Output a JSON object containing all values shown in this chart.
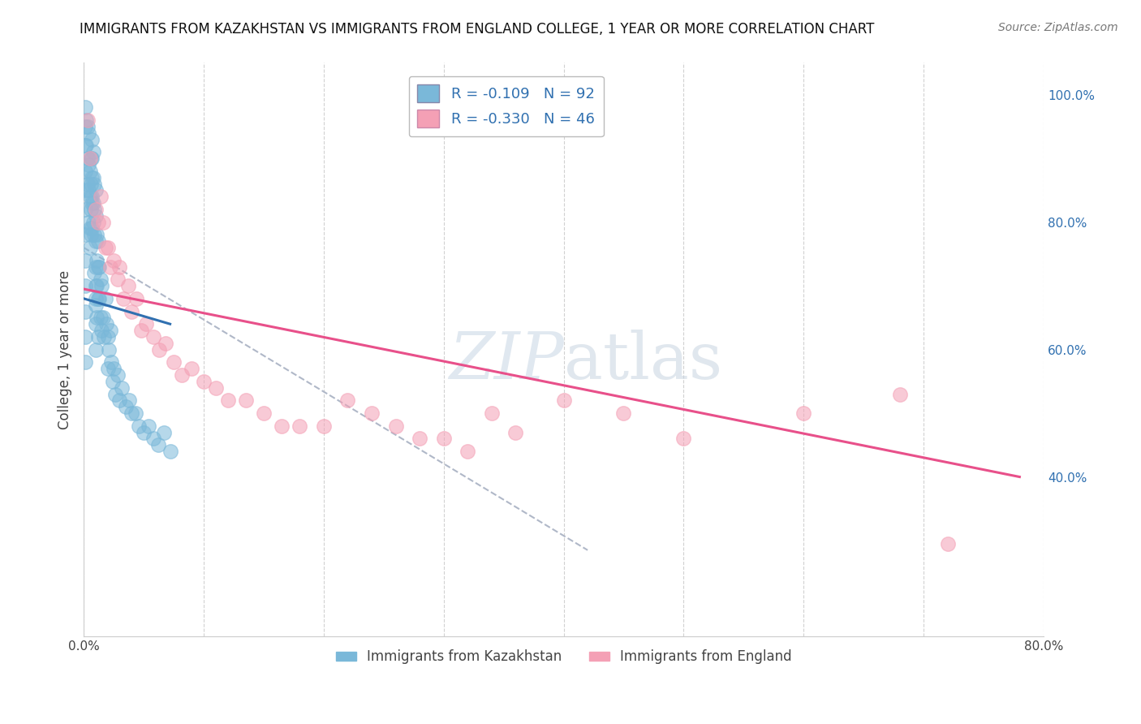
{
  "title": "IMMIGRANTS FROM KAZAKHSTAN VS IMMIGRANTS FROM ENGLAND COLLEGE, 1 YEAR OR MORE CORRELATION CHART",
  "source": "Source: ZipAtlas.com",
  "ylabel": "College, 1 year or more",
  "xlim": [
    0.0,
    0.8
  ],
  "ylim": [
    0.15,
    1.05
  ],
  "yticks_right": [
    0.4,
    0.6,
    0.8,
    1.0
  ],
  "ytickslabels_right": [
    "40.0%",
    "60.0%",
    "80.0%",
    "100.0%"
  ],
  "legend_r1": "R = -0.109",
  "legend_n1": "N = 92",
  "legend_r2": "R = -0.330",
  "legend_n2": "N = 46",
  "color_blue": "#7ab8d9",
  "color_pink": "#f4a0b5",
  "color_blue_line": "#3070b0",
  "color_pink_line": "#e8508a",
  "color_text_blue": "#3070b0",
  "color_dashed": "#b0b8c8",
  "watermark_zip": "ZIP",
  "watermark_atlas": "atlas",
  "blue_scatter_x": [
    0.005,
    0.005,
    0.005,
    0.007,
    0.007,
    0.007,
    0.007,
    0.008,
    0.008,
    0.008,
    0.009,
    0.009,
    0.009,
    0.01,
    0.01,
    0.01,
    0.01,
    0.01,
    0.01,
    0.01,
    0.01,
    0.011,
    0.011,
    0.011,
    0.012,
    0.012,
    0.012,
    0.013,
    0.013,
    0.014,
    0.014,
    0.015,
    0.015,
    0.016,
    0.017,
    0.018,
    0.019,
    0.02,
    0.02,
    0.021,
    0.022,
    0.023,
    0.024,
    0.025,
    0.026,
    0.028,
    0.03,
    0.032,
    0.035,
    0.038,
    0.04,
    0.043,
    0.046,
    0.05,
    0.054,
    0.058,
    0.062,
    0.067,
    0.072,
    0.002,
    0.002,
    0.003,
    0.003,
    0.003,
    0.004,
    0.004,
    0.004,
    0.004,
    0.005,
    0.006,
    0.006,
    0.006,
    0.006,
    0.007,
    0.007,
    0.008,
    0.009,
    0.01,
    0.011,
    0.012,
    0.001,
    0.001,
    0.001,
    0.001,
    0.001,
    0.001,
    0.001,
    0.001,
    0.001,
    0.001,
    0.001,
    0.001
  ],
  "blue_scatter_y": [
    0.88,
    0.84,
    0.79,
    0.93,
    0.9,
    0.87,
    0.83,
    0.91,
    0.87,
    0.83,
    0.86,
    0.82,
    0.78,
    0.85,
    0.81,
    0.77,
    0.73,
    0.7,
    0.67,
    0.64,
    0.6,
    0.78,
    0.74,
    0.7,
    0.77,
    0.73,
    0.68,
    0.73,
    0.68,
    0.71,
    0.65,
    0.7,
    0.63,
    0.65,
    0.62,
    0.68,
    0.64,
    0.62,
    0.57,
    0.6,
    0.63,
    0.58,
    0.55,
    0.57,
    0.53,
    0.56,
    0.52,
    0.54,
    0.51,
    0.52,
    0.5,
    0.5,
    0.48,
    0.47,
    0.48,
    0.46,
    0.45,
    0.47,
    0.44,
    0.96,
    0.92,
    0.95,
    0.9,
    0.86,
    0.94,
    0.89,
    0.85,
    0.8,
    0.76,
    0.9,
    0.86,
    0.82,
    0.78,
    0.84,
    0.79,
    0.8,
    0.72,
    0.68,
    0.65,
    0.62,
    0.98,
    0.95,
    0.92,
    0.88,
    0.85,
    0.82,
    0.78,
    0.74,
    0.7,
    0.66,
    0.62,
    0.58
  ],
  "pink_scatter_x": [
    0.003,
    0.005,
    0.01,
    0.012,
    0.014,
    0.016,
    0.018,
    0.02,
    0.022,
    0.025,
    0.028,
    0.03,
    0.033,
    0.037,
    0.04,
    0.044,
    0.048,
    0.052,
    0.058,
    0.063,
    0.068,
    0.075,
    0.082,
    0.09,
    0.1,
    0.11,
    0.12,
    0.135,
    0.15,
    0.165,
    0.18,
    0.2,
    0.22,
    0.24,
    0.26,
    0.28,
    0.3,
    0.32,
    0.34,
    0.36,
    0.4,
    0.45,
    0.5,
    0.6,
    0.68,
    0.72
  ],
  "pink_scatter_y": [
    0.96,
    0.9,
    0.82,
    0.8,
    0.84,
    0.8,
    0.76,
    0.76,
    0.73,
    0.74,
    0.71,
    0.73,
    0.68,
    0.7,
    0.66,
    0.68,
    0.63,
    0.64,
    0.62,
    0.6,
    0.61,
    0.58,
    0.56,
    0.57,
    0.55,
    0.54,
    0.52,
    0.52,
    0.5,
    0.48,
    0.48,
    0.48,
    0.52,
    0.5,
    0.48,
    0.46,
    0.46,
    0.44,
    0.5,
    0.47,
    0.52,
    0.5,
    0.46,
    0.5,
    0.53,
    0.295
  ],
  "blue_line_x": [
    0.0,
    0.072
  ],
  "blue_line_y": [
    0.68,
    0.64
  ],
  "pink_line_x": [
    0.0,
    0.78
  ],
  "pink_line_y": [
    0.695,
    0.4
  ],
  "dashed_line_x": [
    0.0,
    0.42
  ],
  "dashed_line_y": [
    0.76,
    0.285
  ]
}
